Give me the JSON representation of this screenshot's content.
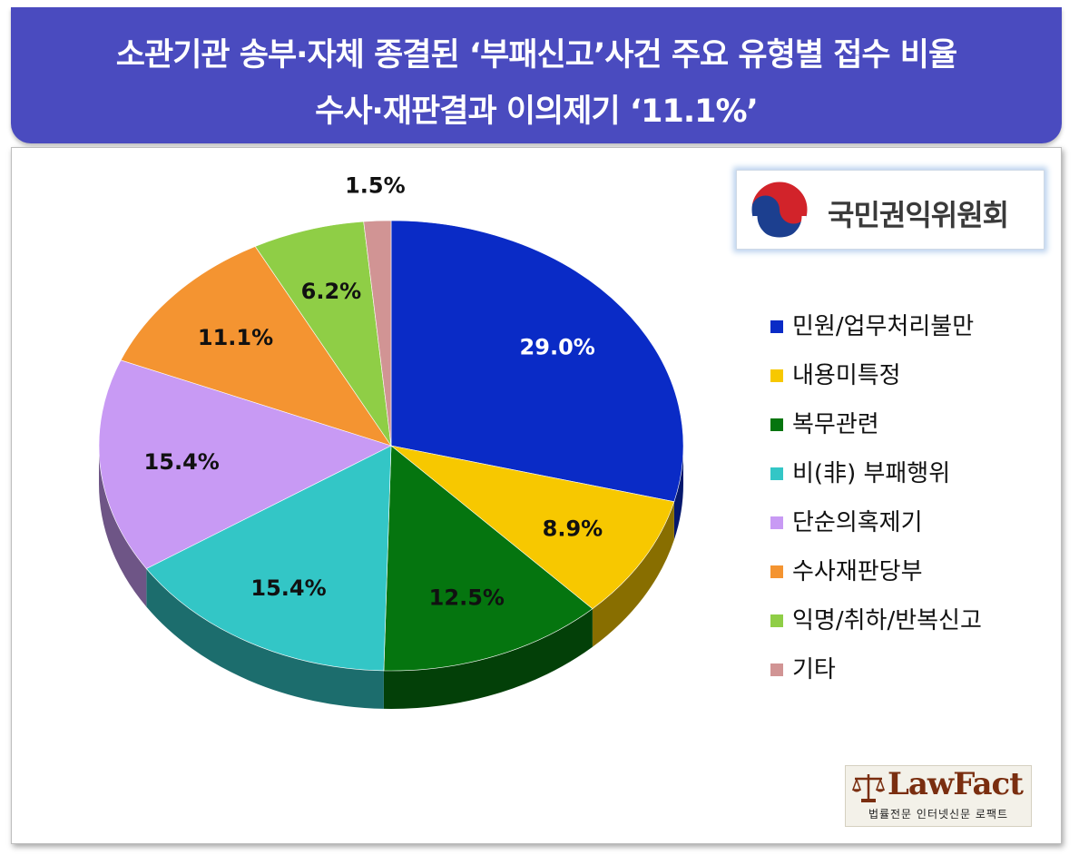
{
  "title": {
    "line1": "소관기관 송부·자체 종결된 ‘부패신고’사건 주요 유형별 접수 비율",
    "line2": "수사·재판결과 이의제기 ‘11.1%’"
  },
  "logo": {
    "org_name": "국민권익위원회"
  },
  "watermark": {
    "brand": "LawFact",
    "tagline": "법률전문 인터넷신문 로팩트"
  },
  "chart_data": {
    "type": "pie",
    "style": "3d",
    "legend_position": "right",
    "start": "12 o'clock, clockwise",
    "slices": [
      {
        "label": "민원/업무처리불만",
        "value": 29.0,
        "display": "29.0%",
        "color": "#0a2bc6",
        "label_color": "#ffffff"
      },
      {
        "label": "내용미특정",
        "value": 8.9,
        "display": "8.9%",
        "color": "#f7c800",
        "label_color": "#111111"
      },
      {
        "label": "복무관련",
        "value": 12.5,
        "display": "12.5%",
        "color": "#05750f",
        "label_color": "#111111"
      },
      {
        "label": "비(非) 부패행위",
        "value": 15.4,
        "display": "15.4%",
        "color": "#33c6c6",
        "label_color": "#111111"
      },
      {
        "label": "단순의혹제기",
        "value": 15.4,
        "display": "15.4%",
        "color": "#c89af4",
        "label_color": "#111111"
      },
      {
        "label": "수사재판당부",
        "value": 11.1,
        "display": "11.1%",
        "color": "#f49431",
        "label_color": "#111111"
      },
      {
        "label": "익명/취하/반복신고",
        "value": 6.2,
        "display": "6.2%",
        "color": "#8fce46",
        "label_color": "#111111"
      },
      {
        "label": "기타",
        "value": 1.5,
        "display": "1.5%",
        "color": "#d19494",
        "label_color": "#111111"
      }
    ]
  }
}
